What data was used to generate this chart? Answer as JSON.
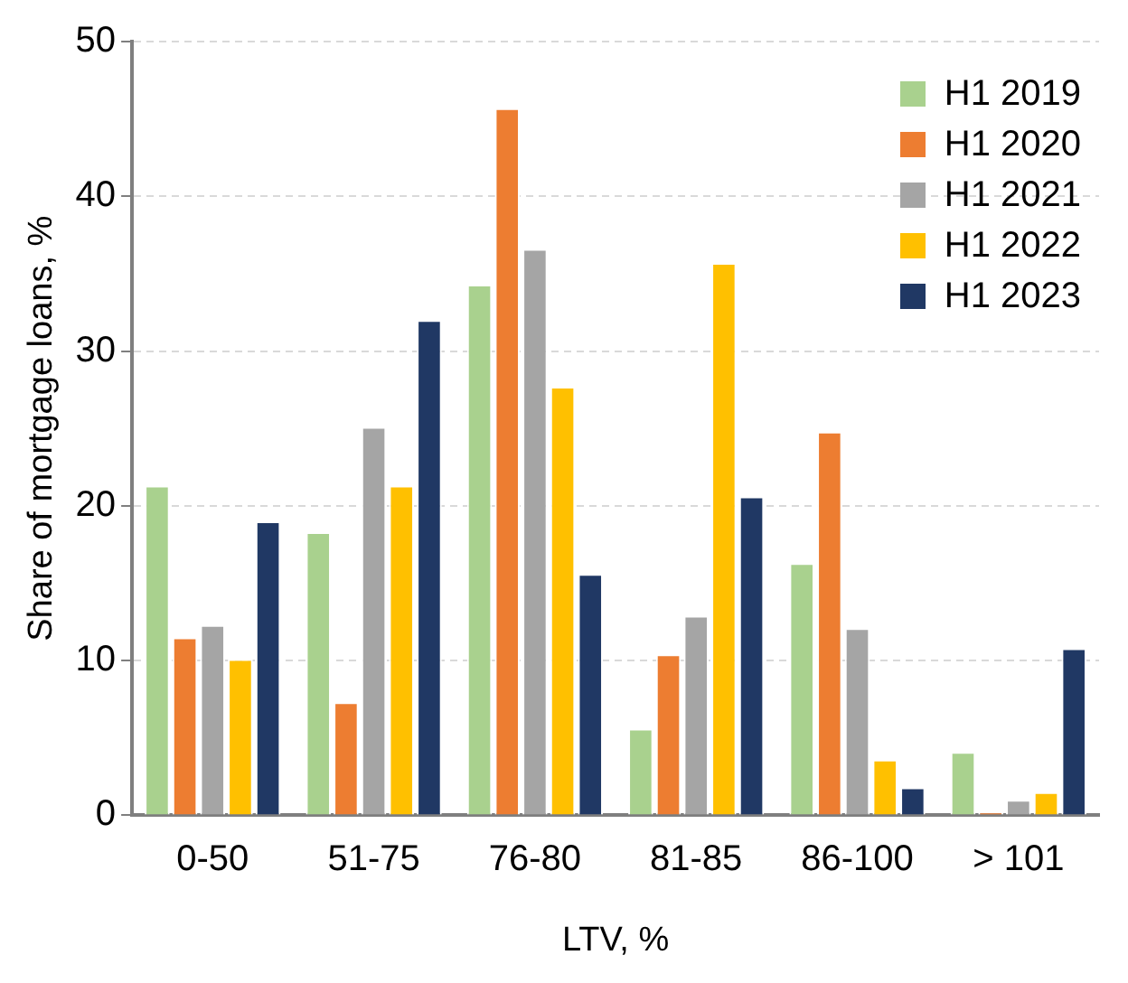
{
  "chart_data": {
    "type": "bar",
    "xlabel": "LTV, %",
    "ylabel": "Share of mortgage loans, %",
    "categories": [
      "0-50",
      "51-75",
      "76-80",
      "81-85",
      "86-100",
      "> 101"
    ],
    "series": [
      {
        "name": "H1 2019",
        "color": "#a9d18e",
        "values": [
          21.3,
          18.3,
          34.3,
          5.6,
          16.3,
          4.1
        ]
      },
      {
        "name": "H1 2020",
        "color": "#ed7d31",
        "values": [
          11.5,
          7.3,
          45.7,
          10.4,
          24.8,
          0.2
        ]
      },
      {
        "name": "H1 2021",
        "color": "#a5a5a5",
        "values": [
          12.3,
          25.1,
          36.6,
          12.9,
          12.1,
          1.0
        ]
      },
      {
        "name": "H1 2022",
        "color": "#ffc000",
        "values": [
          10.1,
          21.3,
          27.7,
          35.7,
          3.6,
          1.5
        ]
      },
      {
        "name": "H1 2023",
        "color": "#203864",
        "values": [
          19.0,
          32.0,
          15.6,
          20.6,
          1.8,
          10.8
        ]
      }
    ],
    "ylim": [
      0,
      50
    ],
    "yticks": [
      0,
      10,
      20,
      30,
      40,
      50
    ],
    "grid": "y",
    "legend": "top right"
  }
}
